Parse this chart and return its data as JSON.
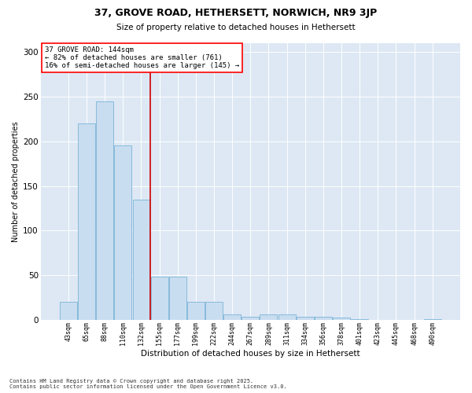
{
  "title1": "37, GROVE ROAD, HETHERSETT, NORWICH, NR9 3JP",
  "title2": "Size of property relative to detached houses in Hethersett",
  "xlabel": "Distribution of detached houses by size in Hethersett",
  "ylabel": "Number of detached properties",
  "bar_color": "#c9ddf0",
  "bar_edge_color": "#6aaad4",
  "vline_color": "#cc0000",
  "vline_x_index": 4,
  "annotation_title": "37 GROVE ROAD: 144sqm",
  "annotation_line1": "← 82% of detached houses are smaller (761)",
  "annotation_line2": "16% of semi-detached houses are larger (145) →",
  "categories": [
    "43sqm",
    "65sqm",
    "88sqm",
    "110sqm",
    "132sqm",
    "155sqm",
    "177sqm",
    "199sqm",
    "222sqm",
    "244sqm",
    "267sqm",
    "289sqm",
    "311sqm",
    "334sqm",
    "356sqm",
    "378sqm",
    "401sqm",
    "423sqm",
    "445sqm",
    "468sqm",
    "490sqm"
  ],
  "values": [
    20,
    220,
    245,
    195,
    135,
    48,
    48,
    20,
    20,
    6,
    3,
    6,
    6,
    3,
    3,
    2,
    1,
    0,
    0,
    0,
    1
  ],
  "ylim": [
    0,
    310
  ],
  "yticks": [
    0,
    50,
    100,
    150,
    200,
    250,
    300
  ],
  "background_color": "#dde8f4",
  "footer1": "Contains HM Land Registry data © Crown copyright and database right 2025.",
  "footer2": "Contains public sector information licensed under the Open Government Licence v3.0."
}
